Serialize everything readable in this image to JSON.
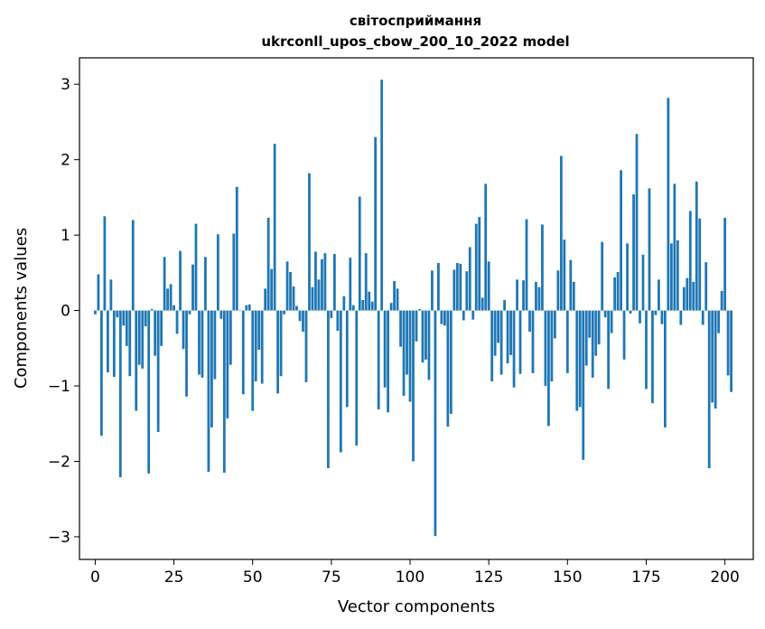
{
  "chart_data": {
    "type": "bar",
    "title": "світосприймання",
    "subtitle": "ukrconll_upos_cbow_200_10_2022 model",
    "xlabel": "Vector components",
    "ylabel": "Components values",
    "xlim": [
      -5,
      209
    ],
    "ylim": [
      -3.3,
      3.35
    ],
    "xticks": [
      0,
      25,
      50,
      75,
      100,
      125,
      150,
      175,
      200
    ],
    "yticks": [
      -3,
      -2,
      -1,
      0,
      1,
      2,
      3
    ],
    "bar_color": "#1f77b4",
    "values": [
      -0.05,
      0.48,
      -1.66,
      1.25,
      -0.82,
      0.41,
      -0.88,
      -0.09,
      -2.21,
      -0.2,
      -0.47,
      -0.87,
      1.2,
      -1.33,
      -0.72,
      -0.77,
      -0.21,
      -2.16,
      0.02,
      -0.6,
      -1.61,
      -0.47,
      0.71,
      0.29,
      0.35,
      0.07,
      -0.31,
      0.79,
      -0.51,
      -1.14,
      -0.05,
      0.61,
      1.15,
      -0.85,
      -0.89,
      0.71,
      -2.14,
      -1.55,
      -0.91,
      1.01,
      -0.11,
      -2.15,
      -1.43,
      -0.72,
      1.02,
      1.64,
      0.0,
      -1.11,
      0.07,
      0.08,
      -1.33,
      -0.94,
      -0.52,
      -0.97,
      0.29,
      1.23,
      0.55,
      2.21,
      -1.1,
      -0.87,
      -0.05,
      0.65,
      0.51,
      0.32,
      0.06,
      -0.14,
      -0.28,
      -0.95,
      1.82,
      0.31,
      0.78,
      0.41,
      0.68,
      0.76,
      -2.09,
      -0.1,
      0.75,
      -0.27,
      -1.88,
      0.19,
      -1.28,
      0.7,
      0.07,
      -1.79,
      1.51,
      0.14,
      0.76,
      0.25,
      0.12,
      2.3,
      -1.31,
      3.06,
      -1.02,
      -1.35,
      0.1,
      0.39,
      0.29,
      -0.48,
      -1.13,
      -0.85,
      -1.21,
      -2.0,
      -0.41,
      0.02,
      -0.69,
      -0.65,
      -0.92,
      0.53,
      -2.99,
      0.63,
      -0.18,
      -0.2,
      -1.54,
      -1.37,
      0.54,
      0.63,
      0.62,
      -0.13,
      0.52,
      0.84,
      -0.12,
      1.15,
      1.24,
      0.17,
      1.68,
      0.65,
      -0.94,
      -0.6,
      -0.43,
      -0.85,
      0.14,
      -0.7,
      -0.59,
      -1.02,
      0.41,
      -0.84,
      0.4,
      1.21,
      -0.28,
      -0.83,
      0.38,
      0.31,
      1.14,
      -1.0,
      -1.53,
      -0.94,
      -0.37,
      0.53,
      2.05,
      0.94,
      -0.83,
      0.67,
      0.38,
      -1.33,
      -1.28,
      -1.98,
      -0.73,
      -0.36,
      -0.89,
      -0.6,
      -0.45,
      0.91,
      -0.09,
      -1.04,
      -0.3,
      0.44,
      0.51,
      1.86,
      -0.65,
      0.89,
      -0.04,
      1.54,
      2.34,
      -0.17,
      0.74,
      -1.04,
      1.62,
      -1.23,
      -0.06,
      0.41,
      -0.18,
      -1.55,
      2.82,
      0.89,
      1.68,
      0.93,
      -0.19,
      0.31,
      0.43,
      1.32,
      0.38,
      1.71,
      1.22,
      -0.19,
      0.64,
      -2.09,
      -1.22,
      -1.3,
      -0.3,
      0.26,
      1.23,
      -0.86,
      -1.08
    ]
  }
}
